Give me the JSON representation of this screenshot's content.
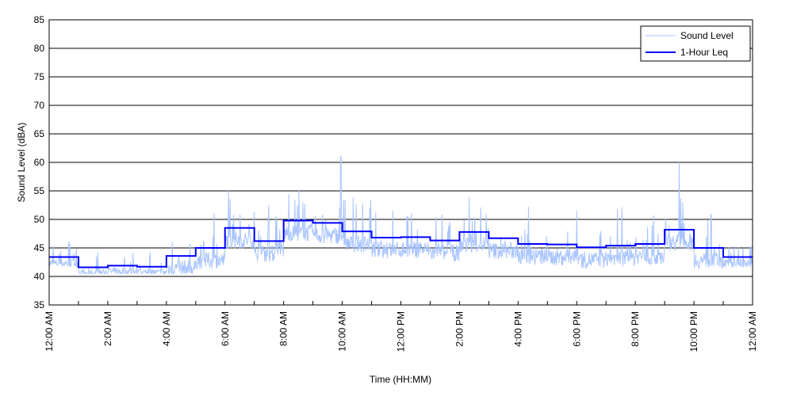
{
  "chart_data": {
    "type": "line",
    "xlabel": "Time (HH:MM)",
    "ylabel": "Sound Level (dBA)",
    "ylim": [
      35,
      85
    ],
    "yticks": [
      35,
      40,
      45,
      50,
      55,
      60,
      65,
      70,
      75,
      80,
      85
    ],
    "xlim_hours": [
      0,
      24
    ],
    "xtick_labels": [
      "12:00 AM",
      "2:00 AM",
      "4:00 AM",
      "6:00 AM",
      "8:00 AM",
      "10:00 AM",
      "12:00 PM",
      "2:00 PM",
      "4:00 PM",
      "6:00 PM",
      "8:00 PM",
      "10:00 PM",
      "12:00 AM"
    ],
    "grid": "horizontal",
    "legend_position": "top-right",
    "series": [
      {
        "name": "Sound Level",
        "color": "#a8c4ff",
        "style": "thin noisy line",
        "notable_peaks": [
          {
            "hour": 9.95,
            "value": 61
          },
          {
            "hour": 21.5,
            "value": 60
          }
        ]
      },
      {
        "name": "1-Hour Leq",
        "color": "#0000ff",
        "style": "step",
        "hours": [
          0,
          1,
          2,
          3,
          4,
          5,
          6,
          7,
          8,
          9,
          10,
          11,
          12,
          13,
          14,
          15,
          16,
          17,
          18,
          19,
          20,
          21,
          22,
          23
        ],
        "values": [
          43.4,
          41.6,
          41.9,
          41.7,
          43.6,
          45.0,
          48.5,
          46.2,
          49.8,
          49.4,
          47.9,
          46.8,
          46.9,
          46.3,
          47.8,
          46.7,
          45.7,
          45.6,
          45.1,
          45.4,
          45.7,
          48.2,
          45.0,
          43.4
        ]
      }
    ]
  }
}
